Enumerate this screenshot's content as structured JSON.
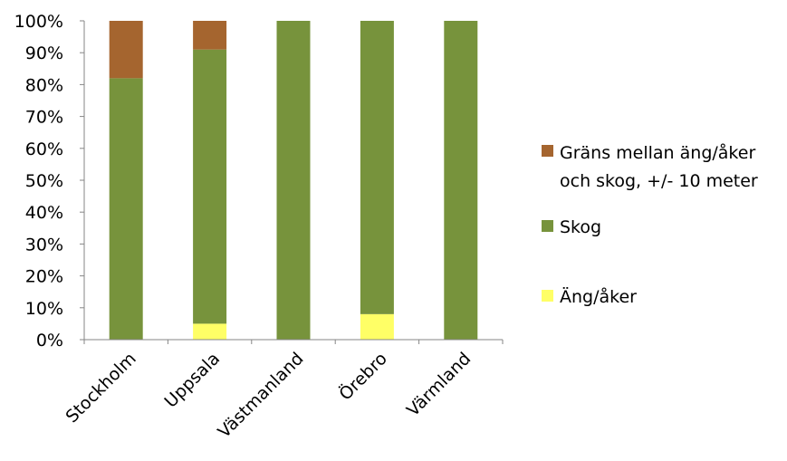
{
  "chart_data": {
    "type": "bar",
    "stacked": true,
    "percent": true,
    "categories": [
      "Stockholm",
      "Uppsala",
      "Västmanland",
      "Örebro",
      "Värmland"
    ],
    "series": [
      {
        "name": "Äng/åker",
        "color": "#ffff66",
        "values": [
          0,
          5,
          0,
          8,
          0
        ]
      },
      {
        "name": "Skog",
        "color": "#77933c",
        "values": [
          82,
          86,
          100,
          92,
          100
        ]
      },
      {
        "name": "Gräns mellan äng/åker och skog, +/- 10 meter",
        "color": "#a5652f",
        "values": [
          18,
          9,
          0,
          0,
          0
        ]
      }
    ],
    "yticks": [
      "0%",
      "10%",
      "20%",
      "30%",
      "40%",
      "50%",
      "60%",
      "70%",
      "80%",
      "90%",
      "100%"
    ],
    "ylim": [
      0,
      100
    ],
    "legend": {
      "position": "right",
      "order": [
        "Gräns mellan äng/åker och skog, +/- 10 meter",
        "Skog",
        "Äng/åker"
      ],
      "lines": {
        "grans": [
          "Gräns mellan äng/åker",
          "och skog, +/- 10 meter"
        ],
        "skog": [
          "Skog"
        ],
        "ang": [
          "Äng/åker"
        ]
      }
    },
    "grid": false,
    "title": "",
    "xlabel": "",
    "ylabel": ""
  }
}
